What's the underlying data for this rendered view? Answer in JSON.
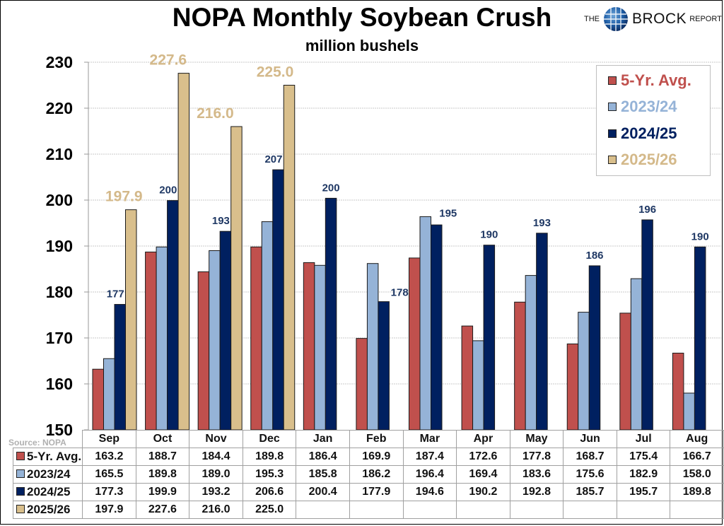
{
  "header": {
    "title": "NOPA Monthly Soybean Crush",
    "subtitle": "million bushels",
    "logo": {
      "the": "THE",
      "brand": "BROCK",
      "report": "REPORT",
      "icon": "globe-icon"
    }
  },
  "source": "Source: NOPA",
  "colors": {
    "five_yr_avg": "#c0504d",
    "y2023_24": "#95b3d7",
    "y2024_25": "#002060",
    "y2025_26": "#d9bf8c",
    "label_2024_25": "#1f3864",
    "label_2025_26": "#d4b98a",
    "grid": "#c8c8c8"
  },
  "chart_data": {
    "type": "bar",
    "title": "NOPA Monthly Soybean Crush",
    "subtitle": "million bushels",
    "xlabel": "",
    "ylabel": "",
    "ylim": [
      150,
      230
    ],
    "yticks": [
      150,
      160,
      170,
      180,
      190,
      200,
      210,
      220,
      230
    ],
    "grid": true,
    "legend_position": "top-right",
    "categories": [
      "Sep",
      "Oct",
      "Nov",
      "Dec",
      "Jan",
      "Feb",
      "Mar",
      "Apr",
      "May",
      "Jun",
      "Jul",
      "Aug"
    ],
    "series": [
      {
        "name": "5-Yr. Avg.",
        "key": "five_yr_avg",
        "values": [
          163.2,
          188.7,
          184.4,
          189.8,
          186.4,
          169.9,
          187.4,
          172.6,
          177.8,
          168.7,
          175.4,
          166.7
        ]
      },
      {
        "name": "2023/24",
        "key": "y2023_24",
        "values": [
          165.5,
          189.8,
          189.0,
          195.3,
          185.8,
          186.2,
          196.4,
          169.4,
          183.6,
          175.6,
          182.9,
          158.0
        ]
      },
      {
        "name": "2024/25",
        "key": "y2024_25",
        "values": [
          177.3,
          199.9,
          193.2,
          206.6,
          200.4,
          177.9,
          194.6,
          190.2,
          192.8,
          185.7,
          195.7,
          189.8
        ]
      },
      {
        "name": "2025/26",
        "key": "y2025_26",
        "values": [
          197.9,
          227.6,
          216.0,
          225.0,
          null,
          null,
          null,
          null,
          null,
          null,
          null,
          null
        ]
      }
    ],
    "data_labels": {
      "2024/25": [
        "177",
        "200",
        "193",
        "207",
        "200",
        "178",
        "195",
        "190",
        "193",
        "186",
        "196",
        "190"
      ],
      "2025/26": [
        "197.9",
        "227.6",
        "216.0",
        "225.0"
      ]
    }
  },
  "table": {
    "rows": [
      {
        "label": "5-Yr. Avg.",
        "key": "five_yr_avg",
        "cells": [
          "163.2",
          "188.7",
          "184.4",
          "189.8",
          "186.4",
          "169.9",
          "187.4",
          "172.6",
          "177.8",
          "168.7",
          "175.4",
          "166.7"
        ]
      },
      {
        "label": "2023/24",
        "key": "y2023_24",
        "cells": [
          "165.5",
          "189.8",
          "189.0",
          "195.3",
          "185.8",
          "186.2",
          "196.4",
          "169.4",
          "183.6",
          "175.6",
          "182.9",
          "158.0"
        ]
      },
      {
        "label": "2024/25",
        "key": "y2024_25",
        "cells": [
          "177.3",
          "199.9",
          "193.2",
          "206.6",
          "200.4",
          "177.9",
          "194.6",
          "190.2",
          "192.8",
          "185.7",
          "195.7",
          "189.8"
        ]
      },
      {
        "label": "2025/26",
        "key": "y2025_26",
        "cells": [
          "197.9",
          "227.6",
          "216.0",
          "225.0",
          "",
          "",
          "",
          "",
          "",
          "",
          "",
          ""
        ]
      }
    ]
  }
}
